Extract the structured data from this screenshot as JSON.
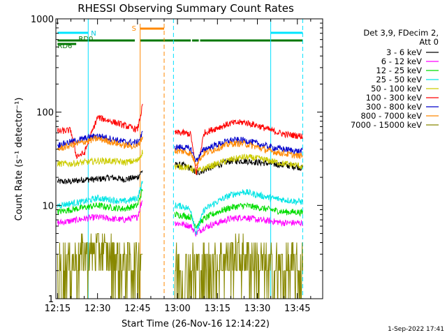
{
  "chart_data": {
    "type": "line",
    "title": "RHESSI Observing Summary Count Rates",
    "xlabel": "Start Time (26-Nov-16 12:14:22)",
    "ylabel": "Count Rate (s⁻¹ detector⁻¹)",
    "y_scale": "log",
    "ylim": [
      1,
      1000
    ],
    "xlim": [
      "12:14:22",
      "13:54:30"
    ],
    "x_ticks": [
      "12:15",
      "12:30",
      "12:45",
      "13:00",
      "13:15",
      "13:30",
      "13:45"
    ],
    "y_ticks": [
      "1",
      "10",
      "100",
      "1000"
    ],
    "legend_header": [
      "Det 3,9, FDecim 2,",
      "Att 0"
    ],
    "legend_position": "right",
    "series": [
      {
        "name": "3 - 6 keV",
        "color": "#000000",
        "segments": [
          {
            "x": [
              "12:15",
              "12:20",
              "12:25",
              "12:30",
              "12:35",
              "12:40",
              "12:45",
              "12:47"
            ],
            "y": [
              18,
              18,
              19,
              19,
              20,
              19,
              20,
              24
            ]
          },
          {
            "x": [
              "12:59",
              "13:02",
              "13:05",
              "13:07",
              "13:10",
              "13:15",
              "13:20",
              "13:25",
              "13:30",
              "13:35",
              "13:40",
              "13:45",
              "13:47"
            ],
            "y": [
              27,
              27,
              25,
              22,
              24,
              27,
              30,
              30,
              29,
              28,
              27,
              26,
              25
            ]
          }
        ]
      },
      {
        "name": "6 - 12 keV",
        "color": "#ff00ff",
        "segments": [
          {
            "x": [
              "12:15",
              "12:20",
              "12:25",
              "12:30",
              "12:35",
              "12:40",
              "12:45",
              "12:47"
            ],
            "y": [
              6.5,
              6.8,
              7.2,
              7.5,
              7.2,
              7,
              7.5,
              12
            ]
          },
          {
            "x": [
              "12:59",
              "13:02",
              "13:05",
              "13:07",
              "13:10",
              "13:15",
              "13:20",
              "13:25",
              "13:30",
              "13:35",
              "13:40",
              "13:45",
              "13:47"
            ],
            "y": [
              6.5,
              6.3,
              6,
              5,
              5.8,
              6.5,
              7.2,
              7.5,
              7,
              6.8,
              6.5,
              6.5,
              6.5
            ]
          }
        ]
      },
      {
        "name": "12 - 25 keV",
        "color": "#00dd00",
        "segments": [
          {
            "x": [
              "12:15",
              "12:20",
              "12:25",
              "12:30",
              "12:35",
              "12:40",
              "12:45",
              "12:47"
            ],
            "y": [
              8.5,
              9,
              9.5,
              10,
              9.5,
              9.2,
              10,
              15
            ]
          },
          {
            "x": [
              "12:59",
              "13:02",
              "13:05",
              "13:07",
              "13:10",
              "13:15",
              "13:20",
              "13:25",
              "13:30",
              "13:35",
              "13:40",
              "13:45",
              "13:47"
            ],
            "y": [
              8,
              7.8,
              7.5,
              6,
              7.2,
              8.5,
              9.5,
              10,
              9.5,
              9,
              8.5,
              8.5,
              8.3
            ]
          }
        ]
      },
      {
        "name": "25 - 50 keV",
        "color": "#00e5e5",
        "segments": [
          {
            "x": [
              "12:15",
              "12:20",
              "12:25",
              "12:30",
              "12:35",
              "12:40",
              "12:45",
              "12:47"
            ],
            "y": [
              10,
              10.5,
              11,
              12,
              11.5,
              11,
              12,
              18
            ]
          },
          {
            "x": [
              "12:59",
              "13:02",
              "13:05",
              "13:07",
              "13:10",
              "13:15",
              "13:20",
              "13:25",
              "13:30",
              "13:35",
              "13:40",
              "13:45",
              "13:47"
            ],
            "y": [
              10,
              9.8,
              9,
              5,
              9,
              11,
              13,
              14,
              13,
              12,
              11.5,
              11,
              11
            ]
          }
        ]
      },
      {
        "name": "50 - 100 keV",
        "color": "#cccc00",
        "segments": [
          {
            "x": [
              "12:15",
              "12:20",
              "12:25",
              "12:30",
              "12:35",
              "12:40",
              "12:45",
              "12:47"
            ],
            "y": [
              28,
              28,
              29,
              30,
              30,
              29,
              30,
              38
            ]
          },
          {
            "x": [
              "12:59",
              "13:02",
              "13:05",
              "13:07",
              "13:10",
              "13:15",
              "13:20",
              "13:25",
              "13:30",
              "13:35",
              "13:40",
              "13:45",
              "13:47"
            ],
            "y": [
              26,
              26,
              25,
              23,
              25,
              28,
              31,
              33,
              32,
              30,
              28,
              27,
              26
            ]
          }
        ]
      },
      {
        "name": "100 - 300 keV",
        "color": "#ff0000",
        "segments": [
          {
            "x": [
              "12:15",
              "12:20",
              "12:22",
              "12:25",
              "12:30",
              "12:35",
              "12:40",
              "12:45",
              "12:47"
            ],
            "y": [
              62,
              64,
              34,
              36,
              88,
              80,
              72,
              65,
              120
            ]
          },
          {
            "x": [
              "12:59",
              "13:02",
              "13:05",
              "13:07",
              "13:10",
              "13:15",
              "13:20",
              "13:25",
              "13:30",
              "13:35",
              "13:40",
              "13:45",
              "13:47"
            ],
            "y": [
              60,
              60,
              58,
              22,
              60,
              68,
              76,
              78,
              72,
              64,
              58,
              56,
              55
            ]
          }
        ]
      },
      {
        "name": "300 - 800 keV",
        "color": "#0000cc",
        "segments": [
          {
            "x": [
              "12:15",
              "12:20",
              "12:25",
              "12:30",
              "12:35",
              "12:40",
              "12:45",
              "12:47"
            ],
            "y": [
              44,
              48,
              52,
              56,
              52,
              48,
              47,
              60
            ]
          },
          {
            "x": [
              "12:59",
              "13:02",
              "13:05",
              "13:07",
              "13:10",
              "13:15",
              "13:20",
              "13:25",
              "13:30",
              "13:35",
              "13:40",
              "13:45",
              "13:47"
            ],
            "y": [
              42,
              42,
              40,
              30,
              40,
              45,
              50,
              50,
              46,
              42,
              40,
              38,
              38
            ]
          }
        ]
      },
      {
        "name": "800 - 7000 keV",
        "color": "#ff8800",
        "segments": [
          {
            "x": [
              "12:15",
              "12:20",
              "12:25",
              "12:30",
              "12:35",
              "12:40",
              "12:45",
              "12:47"
            ],
            "y": [
              40,
              44,
              48,
              52,
              48,
              44,
              43,
              55
            ]
          },
          {
            "x": [
              "12:59",
              "13:02",
              "13:05",
              "13:07",
              "13:10",
              "13:15",
              "13:20",
              "13:25",
              "13:30",
              "13:35",
              "13:40",
              "13:45",
              "13:47"
            ],
            "y": [
              38,
              38,
              36,
              28,
              36,
              41,
              46,
              46,
              42,
              38,
              36,
              34,
              34
            ]
          }
        ]
      },
      {
        "name": "7000 - 15000 keV",
        "color": "#888800",
        "segments": [
          {
            "x": [
              "12:15",
              "12:20",
              "12:25",
              "12:30",
              "12:35",
              "12:40",
              "12:45",
              "12:47"
            ],
            "y": [
              2,
              2.5,
              3,
              3.5,
              3,
              2.5,
              2.5,
              3.5
            ]
          },
          {
            "x": [
              "12:59",
              "13:05",
              "13:10",
              "13:15",
              "13:20",
              "13:25",
              "13:30",
              "13:35",
              "13:40",
              "13:45",
              "13:47"
            ],
            "y": [
              2,
              2,
              2,
              2.5,
              3,
              3,
              2.5,
              2,
              2,
              2,
              2
            ]
          }
        ]
      }
    ],
    "annotations": {
      "cyan_vlines": [
        "12:26:30",
        "12:58:30",
        "13:35",
        "13:47"
      ],
      "orange_vlines": [
        "12:46",
        "12:55"
      ],
      "night_bars": [
        {
          "label": "N",
          "start": "12:15",
          "end": "12:26:30"
        },
        {
          "label": "",
          "start": "13:35",
          "end": "13:47"
        }
      ],
      "saa_bar": {
        "label": "S",
        "start": "12:46",
        "end": "12:55"
      },
      "rd_bars": [
        {
          "label": "RD0",
          "start": "12:15",
          "end": "12:44"
        },
        {
          "label": "",
          "start": "12:46",
          "end": "13:05"
        },
        {
          "label": "",
          "start": "13:05:30",
          "end": "13:08"
        },
        {
          "label": "",
          "start": "13:08:30",
          "end": "13:47"
        }
      ],
      "rd_left_bars": [
        {
          "label": "RD6",
          "start": "12:15",
          "end": "12:22"
        }
      ]
    }
  },
  "footer": {
    "timestamp": "1-Sep-2022 17:41"
  }
}
